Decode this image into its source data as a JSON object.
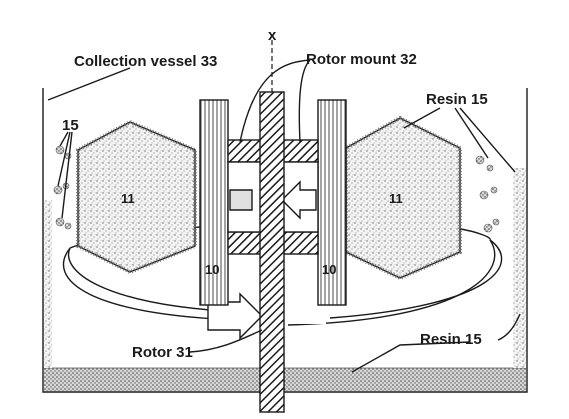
{
  "labels": {
    "axis": "x",
    "collection_vessel": "Collection vessel 33",
    "rotor_mount": "Rotor mount 32",
    "resin_top_right": "Resin 15",
    "resin_left": "15",
    "block_left": "11",
    "block_right": "11",
    "column_left": "10",
    "column_right": "10",
    "rotor": "Rotor 31",
    "resin_bottom_right": "Resin 15"
  }
}
